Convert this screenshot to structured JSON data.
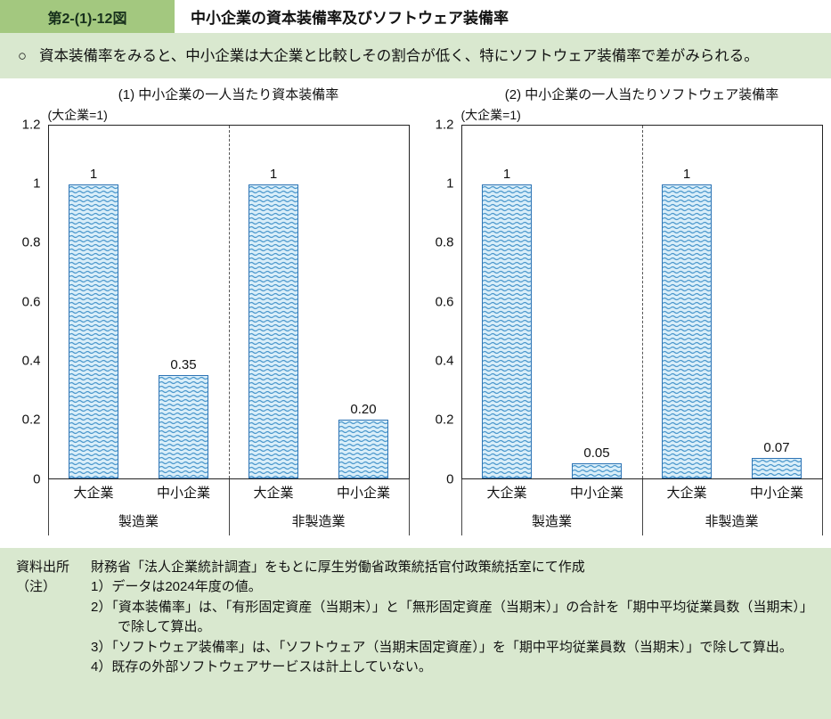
{
  "header": {
    "figure_label": "第2-(1)-12図",
    "title": "中小企業の資本装備率及びソフトウェア装備率"
  },
  "summary": {
    "bullet": "○",
    "text": "資本装備率をみると、中小企業は大企業と比較しその割合が低く、特にソフトウェア装備率で差がみられる。"
  },
  "chart_data": [
    {
      "type": "bar",
      "title": "(1) 中小企業の一人当たり資本装備率",
      "unit_label": "(大企業=1)",
      "groups": [
        "製造業",
        "非製造業"
      ],
      "categories": [
        "大企業",
        "中小企業",
        "大企業",
        "中小企業"
      ],
      "values": [
        1,
        0.35,
        1,
        0.2
      ],
      "value_labels": [
        "1",
        "0.35",
        "1",
        "0.20"
      ],
      "ylim": [
        0,
        1.2
      ],
      "yticks": [
        "1.2",
        "1",
        "0.8",
        "0.6",
        "0.4",
        "0.2",
        "0"
      ],
      "grid": false,
      "legend": false
    },
    {
      "type": "bar",
      "title": "(2) 中小企業の一人当たりソフトウェア装備率",
      "unit_label": "(大企業=1)",
      "groups": [
        "製造業",
        "非製造業"
      ],
      "categories": [
        "大企業",
        "中小企業",
        "大企業",
        "中小企業"
      ],
      "values": [
        1,
        0.05,
        1,
        0.07
      ],
      "value_labels": [
        "1",
        "0.05",
        "1",
        "0.07"
      ],
      "ylim": [
        0,
        1.2
      ],
      "yticks": [
        "1.2",
        "1",
        "0.8",
        "0.6",
        "0.4",
        "0.2",
        "0"
      ],
      "grid": false,
      "legend": false
    }
  ],
  "notes": {
    "source_label": "資料出所",
    "source_text": "財務省「法人企業統計調査」をもとに厚生労働省政策統括官付政策統括室にて作成",
    "note_label": "（注）",
    "items": [
      "1）データは2024年度の値。",
      "2）「資本装備率」は、「有形固定資産（当期末）」と「無形固定資産（当期末）」の合計を「期中平均従業員数（当期末）」で除して算出。",
      "3）「ソフトウェア装備率」は、「ソフトウェア（当期末固定資産）」を「期中平均従業員数（当期末）」で除して算出。",
      "4）既存の外部ソフトウェアサービスは計上していない。"
    ]
  },
  "colors": {
    "page_bg": "#d9e8cf",
    "header_strip": "#a3c87f",
    "bar_fill": "#d9eef9",
    "bar_border": "#2e74b5",
    "bar_pattern": "#4a97cc",
    "axis_color": "#222222"
  }
}
